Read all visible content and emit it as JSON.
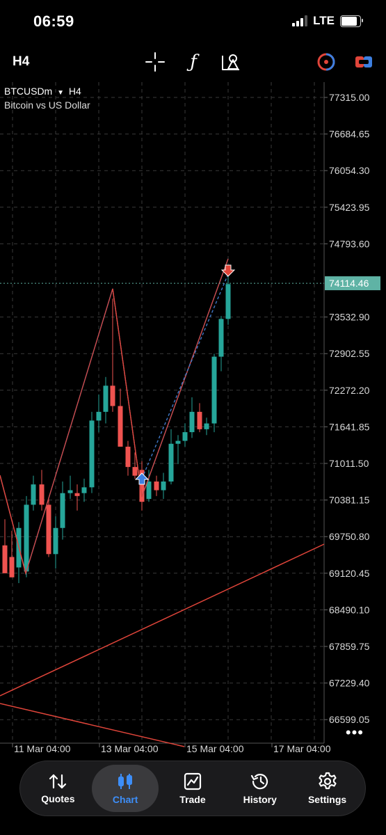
{
  "status_bar": {
    "time": "06:59",
    "network": "LTE",
    "battery_level": 0.85
  },
  "toolbar": {
    "timeframe": "H4",
    "tools": [
      {
        "name": "crosshair-icon"
      },
      {
        "name": "indicators-icon",
        "glyph": "ƒ"
      },
      {
        "name": "objects-icon"
      },
      {
        "name": "one-click-trading-icon"
      },
      {
        "name": "trade-toggle-icon"
      }
    ]
  },
  "chart": {
    "symbol": "BTCUSDm",
    "symbol_timeframe": "H4",
    "description": "Bitcoin vs US Dollar",
    "current_price": "74114.46",
    "price_axis": [
      "77315.00",
      "76684.65",
      "76054.30",
      "75423.95",
      "74793.60",
      "73532.90",
      "72902.55",
      "72272.20",
      "71641.85",
      "71011.50",
      "70381.15",
      "69750.80",
      "69120.45",
      "68490.10",
      "67859.75",
      "67229.40",
      "66599.05"
    ],
    "time_axis": [
      "11 Mar 04:00",
      "13 Mar 04:00",
      "15 Mar 04:00",
      "17 Mar 04:00"
    ],
    "colors": {
      "bull": "#26a69a",
      "bear": "#ef5350",
      "zigzag_blue": "#3f78c6",
      "zigzag_red": "#e0453a",
      "bid_line": "#5fb3a5",
      "grid": "#3a3a3a"
    }
  },
  "bottom_nav": {
    "items": [
      {
        "key": "quotes",
        "label": "Quotes",
        "icon": "quotes-icon",
        "active": false
      },
      {
        "key": "chart",
        "label": "Chart",
        "icon": "chart-icon",
        "active": true
      },
      {
        "key": "trade",
        "label": "Trade",
        "icon": "trade-icon",
        "active": false
      },
      {
        "key": "history",
        "label": "History",
        "icon": "history-icon",
        "active": false
      },
      {
        "key": "settings",
        "label": "Settings",
        "icon": "settings-icon",
        "active": false
      }
    ]
  }
}
